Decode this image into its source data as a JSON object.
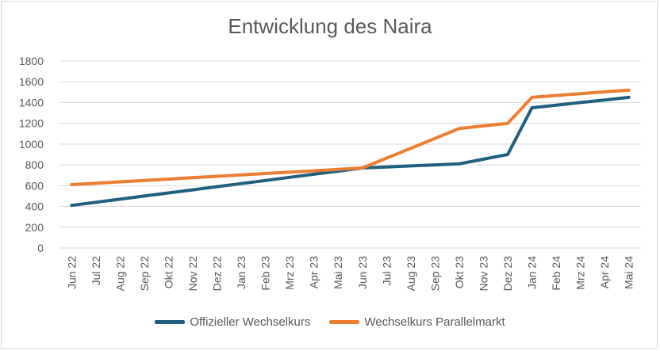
{
  "chart_data": {
    "type": "line",
    "title": "Entwicklung des Naira",
    "xlabel": "",
    "ylabel": "",
    "ylim": [
      0,
      1800
    ],
    "yticks": [
      0,
      200,
      400,
      600,
      800,
      1000,
      1200,
      1400,
      1600,
      1800
    ],
    "grid": true,
    "legend_position": "bottom",
    "categories": [
      "Jun 22",
      "Jul 22",
      "Aug 22",
      "Sep 22",
      "Okt 22",
      "Nov 22",
      "Dez 22",
      "Jan 23",
      "Feb 23",
      "Mrz 23",
      "Apr 23",
      "Mai 23",
      "Jun 23",
      "Jul 23",
      "Aug 23",
      "Sep 23",
      "Okt 23",
      "Nov 23",
      "Dez 23",
      "Jan 24",
      "Feb 24",
      "Mrz 24",
      "Apr 24",
      "Mai 24"
    ],
    "series": [
      {
        "name": "Offizieller Wechselkurs",
        "color": "#1f5f7f",
        "values": [
          410,
          440,
          470,
          500,
          530,
          560,
          590,
          620,
          650,
          680,
          710,
          740,
          770,
          780,
          790,
          800,
          810,
          855,
          900,
          1350,
          1375,
          1400,
          1425,
          1450
        ]
      },
      {
        "name": "Wechselkurs Parallelmarkt",
        "color": "#ed7d31",
        "values": [
          610,
          623,
          637,
          650,
          663,
          677,
          690,
          703,
          717,
          730,
          743,
          757,
          770,
          865,
          960,
          1055,
          1150,
          1175,
          1200,
          1450,
          1468,
          1485,
          1503,
          1520
        ]
      }
    ]
  }
}
